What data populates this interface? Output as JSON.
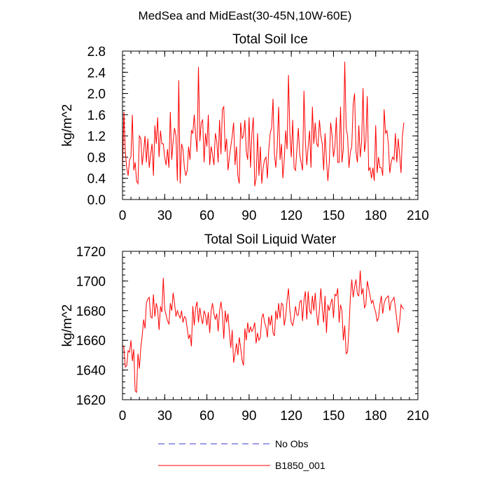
{
  "figure_title": "MedSea and MidEast(30-45N,10W-60E)",
  "legend": [
    {
      "label": "No Obs",
      "color": "#3b3bcc",
      "dashed": true
    },
    {
      "label": "B1850_001",
      "color": "#ff0000",
      "dashed": false
    }
  ],
  "chart_data": [
    {
      "type": "line",
      "title": "Total Soil Ice",
      "xlabel": "",
      "ylabel": "kg/m^2",
      "xlim": [
        0,
        210
      ],
      "ylim": [
        0.0,
        2.8
      ],
      "xticks": [
        0,
        30,
        60,
        90,
        120,
        150,
        180,
        210
      ],
      "yticks": [
        0.0,
        0.4,
        0.8,
        1.2,
        1.6,
        2.0,
        2.4,
        2.8
      ],
      "ytick_labels": [
        "0.0",
        "0.4",
        "0.8",
        "1.2",
        "1.6",
        "2.0",
        "2.4",
        "2.8"
      ],
      "series": [
        {
          "name": "B1850_001",
          "color": "#ff0000",
          "x_start": 0,
          "values": [
            0.55,
            1.65,
            0.9,
            0.6,
            0.45,
            0.75,
            0.8,
            1.6,
            0.55,
            0.7,
            0.35,
            0.3,
            1.2,
            1.15,
            0.65,
            0.9,
            1.2,
            0.7,
            1.15,
            0.6,
            0.85,
            1.05,
            0.45,
            1.4,
            1.05,
            1.55,
            0.8,
            1.3,
            1.05,
            1.05,
            0.8,
            0.65,
            0.95,
            0.6,
            1.65,
            0.75,
            1.1,
            1.35,
            1.2,
            0.35,
            2.25,
            0.3,
            1.05,
            0.95,
            0.6,
            0.45,
            0.55,
            1.0,
            0.75,
            1.3,
            1.25,
            1.6,
            1.2,
            0.9,
            2.5,
            1.1,
            1.45,
            1.5,
            0.7,
            1.25,
            1.0,
            1.6,
            0.65,
            1.0,
            0.85,
            0.65,
            1.25,
            1.1,
            0.7,
            1.5,
            0.85,
            1.7,
            1.75,
            0.9,
            1.15,
            0.55,
            0.8,
            1.0,
            1.2,
            1.45,
            0.65,
            1.0,
            0.45,
            0.3,
            1.45,
            1.15,
            1.2,
            1.5,
            0.9,
            0.75,
            1.55,
            0.6,
            1.25,
            1.55,
            0.25,
            0.4,
            1.25,
            0.45,
            1.0,
            0.3,
            0.6,
            0.75,
            0.8,
            0.4,
            0.95,
            1.25,
            1.35,
            1.9,
            0.85,
            0.6,
            1.0,
            1.75,
            0.75,
            1.05,
            0.4,
            0.75,
            1.3,
            0.95,
            2.35,
            1.25,
            0.8,
            1.5,
            0.6,
            0.55,
            0.95,
            1.35,
            0.85,
            0.7,
            0.55,
            2.05,
            1.1,
            0.65,
            1.0,
            1.3,
            0.6,
            1.75,
            1.05,
            1.45,
            1.05,
            1.0,
            1.5,
            1.2,
            1.05,
            0.55,
            1.25,
            0.75,
            0.35,
            0.7,
            1.45,
            1.2,
            0.8,
            1.0,
            1.55,
            0.7,
            0.7,
            1.75,
            0.7,
            0.95,
            2.6,
            1.35,
            1.2,
            0.6,
            0.9,
            1.0,
            1.8,
            2.0,
            0.9,
            0.7,
            1.4,
            0.8,
            1.1,
            2.1,
            0.9,
            1.1,
            1.95,
            0.55,
            0.6,
            0.4,
            0.6,
            0.35,
            1.4,
            0.5,
            0.8,
            0.6,
            0.6,
            0.45,
            1.7,
            1.25,
            1.3,
            1.05,
            0.5,
            0.7,
            0.8,
            0.75,
            1.25,
            0.7,
            1.15,
            0.85,
            0.5,
            1.2,
            1.45
          ]
        }
      ]
    },
    {
      "type": "line",
      "title": "Total Soil Liquid Water",
      "xlabel": "",
      "ylabel": "kg/m^2",
      "xlim": [
        0,
        210
      ],
      "ylim": [
        1620,
        1720
      ],
      "xticks": [
        0,
        30,
        60,
        90,
        120,
        150,
        180,
        210
      ],
      "yticks": [
        1620,
        1640,
        1660,
        1680,
        1700,
        1720
      ],
      "ytick_labels": [
        "1620",
        "1640",
        "1660",
        "1680",
        "1700",
        "1720"
      ],
      "series": [
        {
          "name": "B1850_001",
          "color": "#ff0000",
          "x_start": 0,
          "values": [
            1657,
            1655,
            1642,
            1643,
            1653,
            1652,
            1660,
            1646,
            1654,
            1626,
            1625,
            1651,
            1641,
            1655,
            1663,
            1674,
            1668,
            1685,
            1688,
            1689,
            1676,
            1675,
            1691,
            1676,
            1685,
            1681,
            1667,
            1683,
            1679,
            1702,
            1681,
            1677,
            1673,
            1671,
            1685,
            1680,
            1692,
            1685,
            1676,
            1680,
            1677,
            1675,
            1680,
            1672,
            1676,
            1675,
            1668,
            1661,
            1664,
            1656,
            1683,
            1670,
            1682,
            1686,
            1672,
            1682,
            1675,
            1671,
            1680,
            1677,
            1670,
            1679,
            1665,
            1680,
            1685,
            1678,
            1674,
            1678,
            1666,
            1680,
            1686,
            1678,
            1661,
            1680,
            1672,
            1678,
            1665,
            1655,
            1667,
            1645,
            1651,
            1658,
            1650,
            1662,
            1655,
            1647,
            1643,
            1668,
            1660,
            1672,
            1665,
            1669,
            1666,
            1668,
            1672,
            1658,
            1665,
            1660,
            1662,
            1675,
            1678,
            1672,
            1669,
            1662,
            1676,
            1670,
            1677,
            1665,
            1663,
            1680,
            1674,
            1685,
            1675,
            1685,
            1684,
            1670,
            1676,
            1687,
            1695,
            1680,
            1672,
            1670,
            1675,
            1683,
            1677,
            1677,
            1686,
            1687,
            1673,
            1687,
            1693,
            1674,
            1693,
            1680,
            1678,
            1690,
            1680,
            1692,
            1678,
            1670,
            1681,
            1695,
            1682,
            1672,
            1690,
            1665,
            1684,
            1680,
            1685,
            1688,
            1675,
            1691,
            1690,
            1695,
            1672,
            1684,
            1680,
            1660,
            1670,
            1651,
            1652,
            1668,
            1689,
            1701,
            1689,
            1696,
            1701,
            1691,
            1690,
            1707,
            1691,
            1695,
            1682,
            1684,
            1700,
            1695,
            1690,
            1685,
            1687,
            1682,
            1679,
            1673,
            1675,
            1684,
            1690,
            1678,
            1685,
            1688,
            1689,
            1690,
            1680,
            1686,
            1687,
            1689,
            1682,
            1674,
            1665,
            1673,
            1684,
            1682,
            1681
          ]
        }
      ]
    }
  ]
}
